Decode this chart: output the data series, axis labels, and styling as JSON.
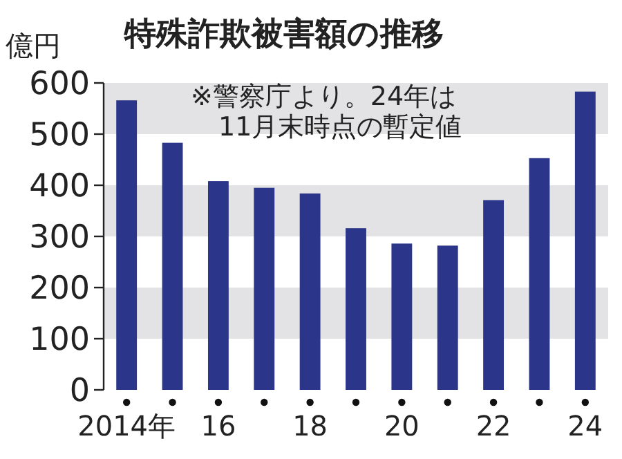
{
  "chart_data": {
    "type": "bar",
    "title": "特殊詐欺被害額の推移",
    "ylabel": "億円",
    "annotations": [
      "※警察庁より。24年は\n11月末時点の暫定値"
    ],
    "categories": [
      "2014年",
      null,
      "16",
      null,
      "18",
      null,
      "20",
      null,
      "22",
      null,
      "24"
    ],
    "series": [
      {
        "color": "#2b3589",
        "values": [
          566,
          483,
          408,
          395,
          384,
          316,
          286,
          282,
          371,
          453,
          583
        ]
      }
    ],
    "ylim": [
      0,
      600
    ],
    "yticks": [
      0,
      100,
      200,
      300,
      400,
      500,
      600
    ]
  }
}
